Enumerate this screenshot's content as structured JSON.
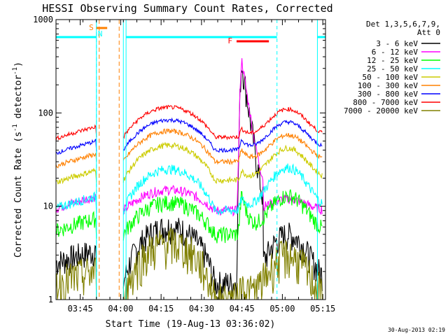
{
  "chart_data": {
    "type": "line",
    "title": "HESSI Observing Summary Count Rates, Corrected",
    "xlabel": "Start Time (19-Aug-13 03:36:02)",
    "ylabel_main": "Corrected Count Rate (s",
    "ylabel_sup1": "-1",
    "ylabel_mid": " detector",
    "ylabel_sup2": "-1",
    "ylabel_end": ")",
    "y_scale": "log",
    "ylim": [
      1,
      1000
    ],
    "xlim_minutes": [
      216,
      316
    ],
    "x_ticks": [
      {
        "m": 225,
        "label": "03:45"
      },
      {
        "m": 240,
        "label": "04:00"
      },
      {
        "m": 255,
        "label": "04:15"
      },
      {
        "m": 270,
        "label": "04:30"
      },
      {
        "m": 285,
        "label": "04:45"
      },
      {
        "m": 300,
        "label": "05:00"
      },
      {
        "m": 315,
        "label": "05:15"
      }
    ],
    "y_ticks": [
      {
        "v": 1,
        "label": "1"
      },
      {
        "v": 10,
        "label": "10"
      },
      {
        "v": 100,
        "label": "100"
      },
      {
        "v": 1000,
        "label": "1000"
      }
    ],
    "legend": {
      "header1": "Det 1,3,5,6,7,9,",
      "header2": "Att 0",
      "placement": "right"
    },
    "series": [
      {
        "name": "3 - 6 keV",
        "color": "#000000",
        "base": 2.5,
        "low": 1.5,
        "hump": 6,
        "flare": 340,
        "post": 5,
        "noise": 0.35
      },
      {
        "name": "6 - 12 keV",
        "color": "#ff00ff",
        "base": 9.5,
        "low": 9,
        "hump": 15,
        "flare": 360,
        "post": 12,
        "noise": 0.12
      },
      {
        "name": "12 - 25 keV",
        "color": "#00ff00",
        "base": 5.5,
        "low": 5,
        "hump": 11,
        "flare": 13,
        "post": 13,
        "noise": 0.2
      },
      {
        "name": "25 - 50 keV",
        "color": "#00ffff",
        "base": 9.5,
        "low": 9,
        "hump": 25,
        "flare": 12,
        "post": 26,
        "noise": 0.12
      },
      {
        "name": "50 - 100 keV",
        "color": "#cccc00",
        "base": 18,
        "low": 19,
        "hump": 45,
        "flare": 24,
        "post": 42,
        "noise": 0.07
      },
      {
        "name": "100 - 300 keV",
        "color": "#ff8000",
        "base": 27,
        "low": 30,
        "hump": 64,
        "flare": 40,
        "post": 58,
        "noise": 0.06
      },
      {
        "name": "300 - 800 keV",
        "color": "#0000ff",
        "base": 37,
        "low": 40,
        "hump": 84,
        "flare": 52,
        "post": 80,
        "noise": 0.05
      },
      {
        "name": "800 - 7000 keV",
        "color": "#ff0000",
        "base": 53,
        "low": 55,
        "hump": 115,
        "flare": 68,
        "post": 110,
        "noise": 0.05
      },
      {
        "name": "7000 - 20000 keV",
        "color": "#808000",
        "base": 1.5,
        "low": 1,
        "hump": 4,
        "flare": 1.5,
        "post": 3,
        "noise": 0.5
      }
    ],
    "night_minutes": [
      [
        216,
        231
      ],
      [
        242,
        298
      ],
      [
        313,
        316
      ]
    ],
    "saa_minutes": [
      231,
      241
    ],
    "attenuator_bar": {
      "label": "S",
      "start_m": 231,
      "end_m": 235,
      "color": "#ff8000"
    },
    "saa_label": "N",
    "flare_bar": {
      "label": "F",
      "start_m": 283,
      "end_m": 295,
      "color": "#ff0000"
    },
    "flare_peak_minute": 285,
    "night_level_value": 650,
    "footer_date": "30-Aug-2013 02:19"
  }
}
